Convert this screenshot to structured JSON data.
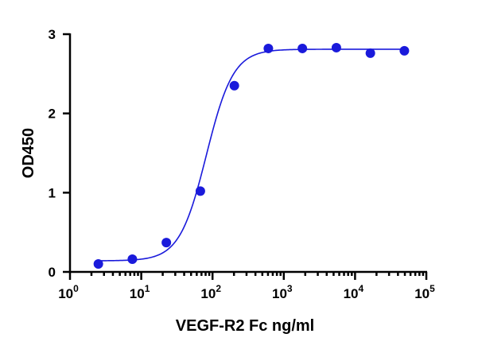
{
  "chart_data": {
    "type": "scatter",
    "xlabel": "VEGF-R2 Fc  ng/ml",
    "ylabel": "OD450",
    "x_scale": "log",
    "xlim": [
      1,
      100000
    ],
    "ylim": [
      0,
      3
    ],
    "x_ticks": [
      {
        "base": "10",
        "exp": "0",
        "value": 1
      },
      {
        "base": "10",
        "exp": "1",
        "value": 10
      },
      {
        "base": "10",
        "exp": "2",
        "value": 100
      },
      {
        "base": "10",
        "exp": "3",
        "value": 1000
      },
      {
        "base": "10",
        "exp": "4",
        "value": 10000
      },
      {
        "base": "10",
        "exp": "5",
        "value": 100000
      }
    ],
    "y_ticks": [
      {
        "label": "0",
        "value": 0
      },
      {
        "label": "1",
        "value": 1
      },
      {
        "label": "2",
        "value": 2
      },
      {
        "label": "3",
        "value": 3
      }
    ],
    "series": [
      {
        "color": "#1a1adb",
        "marker": "circle",
        "x": [
          2.5,
          7.5,
          22.5,
          67.5,
          202.5,
          607.5,
          1822.5,
          5467.5,
          16402.5,
          49207.5
        ],
        "y": [
          0.1,
          0.16,
          0.37,
          1.02,
          2.35,
          2.82,
          2.82,
          2.83,
          2.76,
          2.79
        ]
      }
    ],
    "fit_curve": {
      "type": "4PL",
      "bottom": 0.14,
      "top": 2.81,
      "ec50": 82,
      "hill": 2.3,
      "color": "#1a1adb"
    },
    "grid": false
  }
}
